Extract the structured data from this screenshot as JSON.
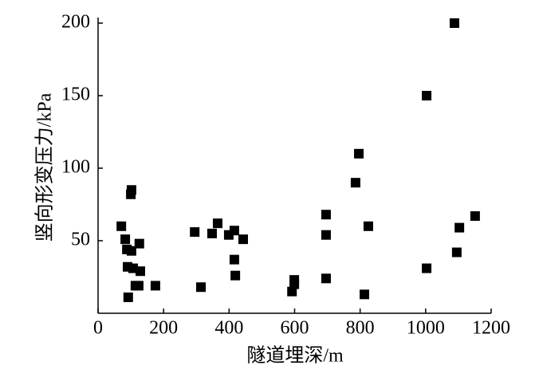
{
  "chart_data": {
    "type": "scatter",
    "x_label": "隧道埋深/m",
    "y_label": "竖向形变压力/kPa",
    "color": "#000000",
    "x": [
      71,
      83,
      88,
      102,
      102,
      100,
      90,
      107,
      126,
      129,
      114,
      124,
      92,
      175,
      295,
      314,
      348,
      365,
      399,
      416,
      416,
      419,
      443,
      592,
      599,
      599,
      696,
      696,
      696,
      786,
      796,
      813,
      825,
      1003,
      1003,
      1088,
      1095,
      1103,
      1151
    ],
    "values": [
      60,
      51,
      44,
      43,
      85,
      82,
      32,
      31,
      48,
      29,
      19,
      19,
      11,
      19,
      56,
      18,
      55,
      62,
      54,
      57,
      37,
      26,
      51,
      15,
      23,
      20,
      68,
      54,
      24,
      90,
      110,
      13,
      60,
      150,
      31,
      200,
      42,
      59,
      67
    ],
    "xlim": [
      0,
      1200
    ],
    "xticks": [
      0,
      200,
      400,
      600,
      800,
      1000,
      1200
    ],
    "ylim": [
      0,
      200
    ],
    "yticks": [
      50,
      100,
      150,
      200
    ]
  }
}
